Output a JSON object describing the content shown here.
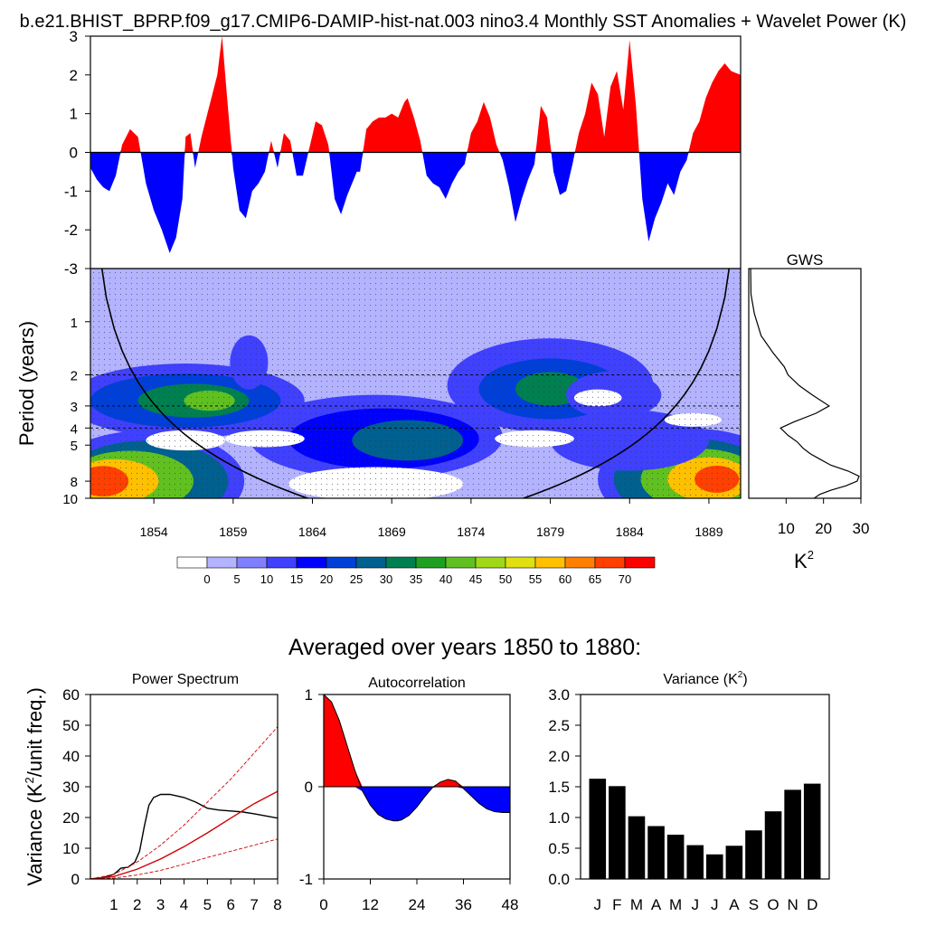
{
  "title": "b.e21.BHIST_BPRP.f09_g17.CMIP6-DAMIP-hist-nat.003 nino3.4 Monthly SST Anomalies + Wavelet Power (K)",
  "colorbar": {
    "labels": [
      "0",
      "5",
      "10",
      "15",
      "20",
      "25",
      "30",
      "35",
      "40",
      "45",
      "50",
      "55",
      "60",
      "65",
      "70"
    ],
    "colors": [
      "#ffffff",
      "#b3b3ff",
      "#8080ff",
      "#4040ff",
      "#0000ff",
      "#0040d9",
      "#006090",
      "#008050",
      "#20a020",
      "#60c020",
      "#a0d818",
      "#e0e010",
      "#ffc000",
      "#ff8000",
      "#ff4000",
      "#ff0000"
    ]
  },
  "labels": {
    "gws_title": "GWS",
    "gws_unit_base": "K",
    "gws_unit_sup": "2",
    "section_title": "Averaged over years 1850 to 1880:",
    "ps_title": "Power Spectrum",
    "ac_title": "Autocorrelation",
    "var_title_base": "Variance (K",
    "var_title_sup": "2",
    "var_title_end": ")",
    "ps_ylabel_a": "Variance (K",
    "ps_ylabel_sup": "2",
    "ps_ylabel_b": "/unit freq.)"
  },
  "chart_data": [
    {
      "id": "anomaly",
      "type": "area",
      "title": "b.e21.BHIST_BPRP.f09_g17.CMIP6-DAMIP-hist-nat.003 nino3.4 Monthly SST Anomalies + Wavelet Power (K)",
      "x_range": [
        1850,
        1891
      ],
      "ylim": [
        -3,
        3
      ],
      "yticks": [
        -3,
        -2,
        -1,
        0,
        1,
        2,
        3
      ],
      "x": [
        1850.0,
        1850.4,
        1850.8,
        1851.2,
        1851.6,
        1852.0,
        1852.5,
        1853.0,
        1853.5,
        1854.0,
        1854.5,
        1855.0,
        1855.4,
        1855.8,
        1856.0,
        1856.3,
        1856.6,
        1857.0,
        1857.5,
        1858.0,
        1858.3,
        1858.6,
        1859.0,
        1859.4,
        1859.8,
        1860.2,
        1860.6,
        1861.0,
        1861.4,
        1861.8,
        1862.2,
        1862.6,
        1863.0,
        1863.4,
        1863.8,
        1864.2,
        1864.6,
        1865.0,
        1865.4,
        1865.8,
        1866.2,
        1866.5,
        1866.8,
        1867.0,
        1867.4,
        1867.8,
        1868.2,
        1868.6,
        1869.0,
        1869.4,
        1869.8,
        1870.0,
        1870.4,
        1870.8,
        1871.2,
        1871.6,
        1872.0,
        1872.4,
        1872.8,
        1873.2,
        1873.6,
        1874.0,
        1874.4,
        1874.8,
        1875.2,
        1875.6,
        1876.0,
        1876.4,
        1876.8,
        1877.2,
        1877.6,
        1878.0,
        1878.4,
        1878.8,
        1879.2,
        1879.6,
        1880.0,
        1880.4,
        1880.8,
        1881.2,
        1881.6,
        1882.0,
        1882.4,
        1882.8,
        1883.2,
        1883.6,
        1884.0,
        1884.4,
        1884.8,
        1885.2,
        1885.6,
        1886.0,
        1886.4,
        1886.8,
        1887.2,
        1887.6,
        1888.0,
        1888.4,
        1888.8,
        1889.2,
        1889.6,
        1890.0,
        1890.4,
        1891.0
      ],
      "values": [
        -0.4,
        -0.7,
        -0.9,
        -1.0,
        -0.6,
        0.2,
        0.6,
        0.4,
        -0.8,
        -1.5,
        -2.0,
        -2.6,
        -2.2,
        -1.2,
        0.4,
        0.5,
        -0.4,
        0.4,
        1.2,
        2.0,
        3.0,
        1.5,
        -0.4,
        -1.5,
        -1.7,
        -1.0,
        -0.8,
        -0.5,
        0.3,
        -0.4,
        0.5,
        0.3,
        -0.6,
        -0.6,
        0.1,
        0.8,
        0.7,
        0.2,
        -1.2,
        -1.6,
        -1.1,
        -0.8,
        -0.5,
        -0.5,
        0.6,
        0.8,
        0.9,
        0.9,
        1.0,
        0.9,
        1.3,
        1.4,
        0.9,
        0.3,
        -0.6,
        -0.8,
        -0.9,
        -1.2,
        -0.8,
        -0.5,
        -0.3,
        0.5,
        0.8,
        1.3,
        0.9,
        0.2,
        -0.2,
        -0.9,
        -1.8,
        -1.2,
        -0.7,
        -0.3,
        1.2,
        0.9,
        -0.5,
        -1.1,
        -1.0,
        -0.3,
        0.5,
        1.0,
        1.8,
        1.5,
        0.4,
        1.7,
        2.1,
        1.1,
        2.9,
        1.2,
        -1.2,
        -2.3,
        -1.7,
        -1.3,
        -0.8,
        -1.1,
        -0.5,
        -0.2,
        0.5,
        0.8,
        1.4,
        1.8,
        2.1,
        2.3,
        2.1,
        2.0
      ]
    },
    {
      "id": "wavelet",
      "type": "heatmap",
      "title": "",
      "ylabel": "Period (years)",
      "y_scale": "log",
      "xticks": [
        1854,
        1859,
        1864,
        1869,
        1874,
        1879,
        1884,
        1889
      ],
      "x_range": [
        1850,
        1891
      ],
      "yticks": [
        1,
        2,
        3,
        4,
        5,
        8,
        10
      ],
      "y_range": [
        0.5,
        10
      ],
      "levels": [
        0,
        5,
        10,
        15,
        20,
        25,
        30,
        35,
        40,
        45,
        50,
        55,
        60,
        65,
        70
      ],
      "cone_of_influence": true,
      "dashed_periods": [
        2,
        3,
        4
      ]
    },
    {
      "id": "gws",
      "type": "line",
      "title": "GWS",
      "xlabel": "K2",
      "xticks": [
        10,
        20,
        30
      ],
      "xlim": [
        0,
        30
      ],
      "y_scale": "log",
      "y": [
        0.5,
        0.7,
        0.9,
        1.2,
        1.5,
        1.8,
        2.0,
        2.3,
        2.6,
        3.0,
        3.3,
        3.7,
        4.0,
        4.4,
        4.8,
        5.2,
        5.6,
        6.0,
        6.5,
        7.0,
        7.5,
        8.0,
        8.5,
        9.0,
        9.5,
        10.0
      ],
      "values": [
        0.5,
        0.6,
        1.5,
        3.3,
        6.5,
        9.5,
        10.5,
        13.5,
        17.0,
        21.5,
        18.0,
        12.0,
        8.5,
        10.5,
        13.0,
        14.5,
        16.5,
        19.0,
        22.0,
        26.5,
        29.5,
        29.0,
        26.0,
        22.0,
        19.0,
        17.5
      ]
    },
    {
      "id": "power_spectrum",
      "type": "line",
      "title": "Power Spectrum",
      "ylabel": "Variance (K2/unit freq.)",
      "xticks": [
        1,
        2,
        3,
        4,
        5,
        6,
        7,
        8
      ],
      "xlim": [
        0,
        8
      ],
      "ylim": [
        0,
        60
      ],
      "yticks": [
        0,
        10,
        20,
        30,
        40,
        50,
        60
      ],
      "series": [
        {
          "x": [
            0,
            0.5,
            1,
            1.3,
            1.6,
            1.9,
            2.1,
            2.3,
            2.5,
            2.7,
            3,
            3.4,
            4,
            4.5,
            5,
            5.5,
            6,
            6.5,
            7,
            7.5,
            8
          ],
          "values": [
            0,
            0.4,
            1.5,
            3.5,
            3.8,
            5.5,
            9,
            17,
            24,
            26.5,
            27.5,
            27.5,
            26.5,
            25,
            23,
            22.4,
            22.1,
            21.8,
            21.2,
            20.5,
            19.8
          ],
          "color": "#000000"
        },
        {
          "x": [
            0,
            1,
            2,
            3,
            4,
            5,
            6,
            7,
            8
          ],
          "values": [
            0,
            0.8,
            3.2,
            6.5,
            10.5,
            15.0,
            19.8,
            24.5,
            28.5
          ],
          "color": "#d00000"
        },
        {
          "x": [
            0,
            1,
            2,
            3,
            4,
            5,
            6,
            7,
            8
          ],
          "values": [
            0,
            1.5,
            5.5,
            11.0,
            17.5,
            25.0,
            32.5,
            41.0,
            49.5
          ],
          "color": "#d00000",
          "dash": true
        },
        {
          "x": [
            0,
            1,
            2,
            3,
            4,
            5,
            6,
            7,
            8
          ],
          "values": [
            0,
            0.3,
            1.3,
            2.8,
            4.8,
            7.0,
            9.0,
            11.0,
            13.0
          ],
          "color": "#d00000",
          "dash": true
        }
      ]
    },
    {
      "id": "autocorrelation",
      "type": "area",
      "title": "Autocorrelation",
      "xticks": [
        0,
        12,
        24,
        36,
        48
      ],
      "xlim": [
        0,
        48
      ],
      "ylim": [
        -1,
        1
      ],
      "yticks": [
        -1,
        0,
        1
      ],
      "x": [
        0,
        2,
        4,
        6,
        8,
        10,
        12,
        14,
        16,
        18,
        19,
        20,
        22,
        24,
        26,
        28,
        30,
        32,
        34,
        36,
        38,
        40,
        42,
        44,
        46,
        48
      ],
      "values": [
        1.0,
        0.92,
        0.72,
        0.45,
        0.18,
        -0.05,
        -0.2,
        -0.3,
        -0.35,
        -0.37,
        -0.37,
        -0.36,
        -0.31,
        -0.22,
        -0.11,
        -0.01,
        0.05,
        0.08,
        0.06,
        -0.02,
        -0.1,
        -0.18,
        -0.24,
        -0.27,
        -0.28,
        -0.28
      ]
    },
    {
      "id": "variance",
      "type": "bar",
      "title": "Variance (K2)",
      "categories": [
        "J",
        "F",
        "M",
        "A",
        "M",
        "J",
        "J",
        "A",
        "S",
        "O",
        "N",
        "D"
      ],
      "values": [
        1.63,
        1.51,
        1.02,
        0.86,
        0.72,
        0.55,
        0.4,
        0.54,
        0.79,
        1.1,
        1.45,
        1.55
      ],
      "ylim": [
        0,
        3.0
      ],
      "yticks": [
        "0.0",
        "0.5",
        "1.0",
        "1.5",
        "2.0",
        "2.5",
        "3.0"
      ]
    }
  ]
}
